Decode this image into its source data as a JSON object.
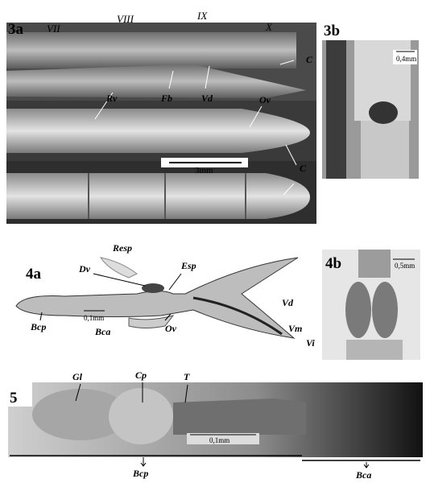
{
  "panels": [
    {
      "label": "3a",
      "annotations": [
        "VII",
        "VIII",
        "IX",
        "X",
        "C",
        "Rv",
        "Fb",
        "Vd",
        "Ov",
        "C"
      ],
      "scale": "3mm"
    },
    {
      "label": "3b",
      "scale": "0,4mm"
    },
    {
      "label": "4a",
      "annotations": [
        "Resp",
        "Esp",
        "Dv",
        "Vd",
        "Vm",
        "Vi",
        "Bcp",
        "Bca",
        "Ov"
      ],
      "scale": "0,1mm"
    },
    {
      "label": "4b",
      "scale": "0,5mm"
    },
    {
      "label": "5",
      "annotations": [
        "Gl",
        "Cp",
        "T",
        "Bcp",
        "Bca"
      ],
      "scale": "0,1mm"
    }
  ]
}
